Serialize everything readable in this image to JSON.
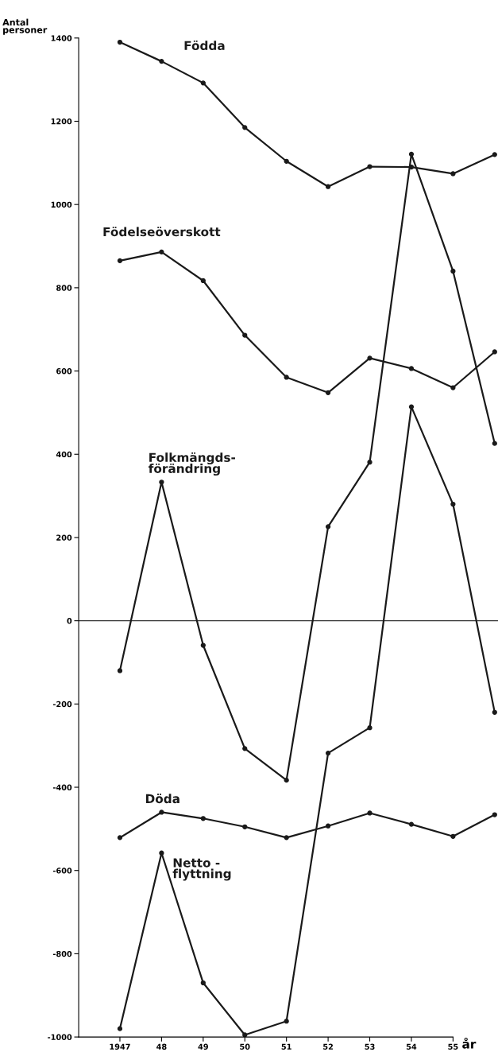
{
  "chart_data": {
    "type": "line",
    "ylabel": "Antal\npersoner",
    "xlabel": "år",
    "categories": [
      "1947",
      "48",
      "49",
      "50",
      "51",
      "52",
      "53",
      "54",
      "55",
      null
    ],
    "series": [
      {
        "name": "Födda",
        "color": "#1a1a1a",
        "values": [
          1390,
          1344,
          1292,
          1185,
          1104,
          1043,
          1091,
          1090,
          1074,
          1120
        ]
      },
      {
        "name": "Födelseöverskott",
        "color": "#1a1a1a",
        "values": [
          865,
          886,
          817,
          686,
          585,
          548,
          631,
          606,
          560,
          646
        ]
      },
      {
        "name": "Folkmängds-\nförändring",
        "color": "#1a1a1a",
        "values": [
          -120,
          333,
          -59,
          -307,
          -383,
          226,
          381,
          1121,
          840,
          426
        ]
      },
      {
        "name": "Döda",
        "color": "#1a1a1a",
        "values": [
          -521,
          -460,
          -475,
          -495,
          -521,
          -493,
          -462,
          -489,
          -518,
          -466
        ]
      },
      {
        "name": "Netto -\nflyttning",
        "color": "#1a1a1a",
        "values": [
          -980,
          -558,
          -870,
          -995,
          -962,
          -318,
          -257,
          514,
          280,
          -220
        ]
      }
    ],
    "ylim": [
      -1000,
      1400
    ],
    "yticks": [
      {
        "value": -1000,
        "label": "-1000"
      },
      {
        "value": -800,
        "label": "-800"
      },
      {
        "value": -600,
        "label": "-600"
      },
      {
        "value": -400,
        "label": "-400"
      },
      {
        "value": -200,
        "label": "-200"
      },
      0,
      200,
      400,
      600,
      800,
      1000,
      1200,
      1400
    ],
    "ref_lines": [
      {
        "axis": "y",
        "value": 0,
        "color": "#333333"
      }
    ],
    "marker": "circle",
    "line_style": "solid",
    "grid": false,
    "legend": false
  }
}
